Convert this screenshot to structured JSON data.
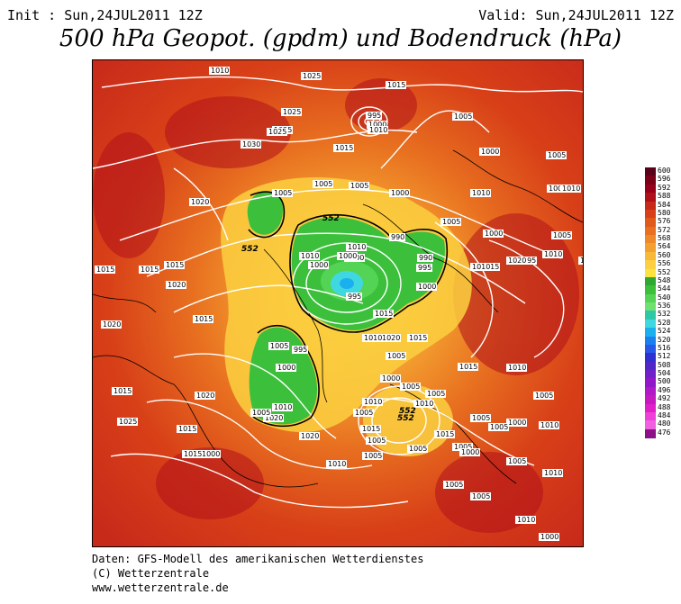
{
  "header": {
    "init": "Init : Sun,24JUL2011 12Z",
    "valid": "Valid: Sun,24JUL2011 12Z",
    "title": "500 hPa Geopot. (gpdm) und Bodendruck (hPa)"
  },
  "legend": {
    "labels": [
      "600",
      "596",
      "592",
      "588",
      "584",
      "580",
      "576",
      "572",
      "568",
      "564",
      "560",
      "556",
      "552",
      "548",
      "544",
      "540",
      "536",
      "532",
      "528",
      "524",
      "520",
      "516",
      "512",
      "508",
      "504",
      "500",
      "496",
      "492",
      "488",
      "484",
      "480",
      "476"
    ],
    "colors": [
      "#5a0018",
      "#7a0018",
      "#98001a",
      "#b0101a",
      "#c82a1a",
      "#d84018",
      "#e05a1a",
      "#e87020",
      "#ee8828",
      "#f4a030",
      "#f8b838",
      "#fcd040",
      "#fce440",
      "#2ea830",
      "#3cc03c",
      "#54d454",
      "#70e070",
      "#2ec8a8",
      "#40d8e0",
      "#1ab0f0",
      "#1a80f0",
      "#2858e8",
      "#3030d0",
      "#5028c8",
      "#7020c8",
      "#9018c8",
      "#b018c8",
      "#c818c0",
      "#e020c8",
      "#f040d8",
      "#f060e0",
      "#8c1088"
    ]
  },
  "map": {
    "isobars": [
      {
        "label": "1020"
      },
      {
        "label": "1025"
      },
      {
        "label": "1015"
      },
      {
        "label": "1025"
      },
      {
        "label": "995"
      },
      {
        "label": "1000"
      },
      {
        "label": "1010"
      },
      {
        "label": "1025"
      },
      {
        "label": "1005"
      },
      {
        "label": "1030"
      },
      {
        "label": "1015"
      },
      {
        "label": "1025"
      },
      {
        "label": "1020"
      },
      {
        "label": "1005"
      },
      {
        "label": "1005"
      },
      {
        "label": "1005"
      },
      {
        "label": "1000"
      },
      {
        "label": "1010"
      },
      {
        "label": "1000"
      },
      {
        "label": "1005"
      },
      {
        "label": "1000"
      },
      {
        "label": "1010"
      },
      {
        "label": "1005"
      },
      {
        "label": "990"
      },
      {
        "label": "1000"
      },
      {
        "label": "1010"
      },
      {
        "label": "1000"
      },
      {
        "label": "995"
      },
      {
        "label": "1015"
      },
      {
        "label": "1015"
      },
      {
        "label": "1015"
      },
      {
        "label": "1020"
      },
      {
        "label": "1015"
      },
      {
        "label": "1010"
      },
      {
        "label": "1000"
      },
      {
        "label": "990"
      },
      {
        "label": "995"
      },
      {
        "label": "1000"
      },
      {
        "label": "1005"
      },
      {
        "label": "995"
      },
      {
        "label": "1010"
      },
      {
        "label": "1000"
      },
      {
        "label": "1015"
      },
      {
        "label": "1020"
      },
      {
        "label": "1010"
      },
      {
        "label": "1015"
      },
      {
        "label": "1020"
      },
      {
        "label": "995"
      },
      {
        "label": "1015"
      },
      {
        "label": "1005"
      },
      {
        "label": "1020"
      },
      {
        "label": "1000"
      },
      {
        "label": "1010"
      },
      {
        "label": "1015"
      },
      {
        "label": "1010"
      },
      {
        "label": "1005"
      },
      {
        "label": "1000"
      },
      {
        "label": "1010"
      },
      {
        "label": "1005"
      },
      {
        "label": "1015"
      },
      {
        "label": "1020"
      },
      {
        "label": "1015"
      },
      {
        "label": "1020"
      },
      {
        "label": "1025"
      },
      {
        "label": "1010"
      },
      {
        "label": "1015"
      },
      {
        "label": "1020"
      },
      {
        "label": "1000"
      },
      {
        "label": "1005"
      },
      {
        "label": "1005"
      },
      {
        "label": "1010"
      },
      {
        "label": "1005"
      },
      {
        "label": "1005"
      },
      {
        "label": "1000"
      },
      {
        "label": "1005"
      },
      {
        "label": "1015"
      },
      {
        "label": "1005"
      },
      {
        "label": "1005"
      },
      {
        "label": "1005"
      },
      {
        "label": "1010"
      },
      {
        "label": "1005"
      },
      {
        "label": "1000"
      },
      {
        "label": "1005"
      },
      {
        "label": "1005"
      },
      {
        "label": "1010"
      },
      {
        "label": "1010"
      },
      {
        "label": "1005"
      },
      {
        "label": "1000"
      },
      {
        "label": "1010"
      },
      {
        "label": "1015"
      },
      {
        "label": "1015"
      },
      {
        "label": "1005"
      },
      {
        "label": "1010"
      }
    ],
    "geopot_labels": [
      "552",
      "552",
      "552",
      "552"
    ]
  },
  "footer": {
    "line1": "Daten: GFS-Modell des amerikanischen Wetterdienstes",
    "line2": "(C) Wetterzentrale",
    "line3": "www.wetterzentrale.de"
  }
}
